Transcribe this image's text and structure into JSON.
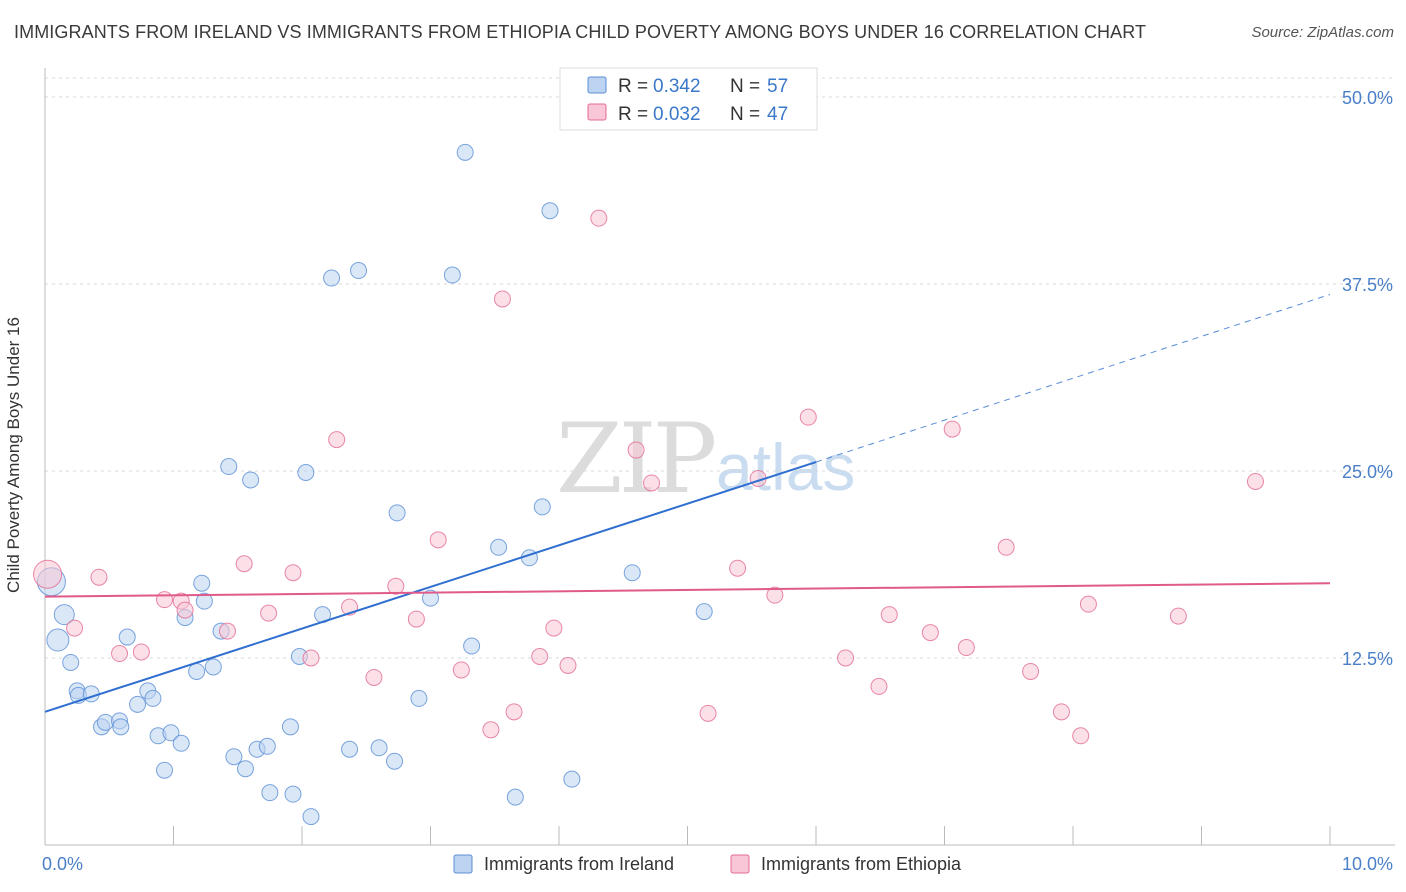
{
  "title": "IMMIGRANTS FROM IRELAND VS IMMIGRANTS FROM ETHIOPIA CHILD POVERTY AMONG BOYS UNDER 16 CORRELATION CHART",
  "source": "Source: ZipAtlas.com",
  "watermark": {
    "zip": "ZIP",
    "atlas": "atlas"
  },
  "colors": {
    "ireland": "#5a8fd6",
    "ireland_fill": "#bcd3f1",
    "ethiopia": "#e46a93",
    "ethiopia_fill": "#f8c6d6",
    "axis_text": "#4a7fc8"
  },
  "legend_top": [
    {
      "r_label": "R =",
      "r_value": "0.342",
      "n_label": "N =",
      "n_value": "57"
    },
    {
      "r_label": "R =",
      "r_value": "0.032",
      "n_label": "N =",
      "n_value": "47"
    }
  ],
  "chart_data": {
    "type": "scatter",
    "ylabel": "Child Poverty Among Boys Under 16",
    "xlim": [
      0,
      10
    ],
    "ylim": [
      0,
      50
    ],
    "x_tick_labels": [
      "0.0%",
      "10.0%"
    ],
    "y_tick_labels": [
      "12.5%",
      "25.0%",
      "37.5%",
      "50.0%"
    ],
    "y_ticks": [
      12.5,
      25.0,
      37.5,
      50.0
    ],
    "grid": true,
    "legend_position": "bottom-center",
    "series": [
      {
        "name": "Immigrants from Ireland",
        "trend": {
          "x": [
            0,
            6.0
          ],
          "y": [
            8.9,
            25.6
          ],
          "dashed_to": [
            10,
            36.8
          ]
        },
        "points": [
          [
            0.05,
            17.6,
            28
          ],
          [
            0.15,
            15.4,
            20
          ],
          [
            0.1,
            13.7,
            22
          ],
          [
            0.2,
            12.2,
            16
          ],
          [
            0.25,
            10.3,
            16
          ],
          [
            0.26,
            10.0,
            16
          ],
          [
            0.36,
            10.1,
            16
          ],
          [
            0.44,
            7.9,
            16
          ],
          [
            0.47,
            8.2,
            16
          ],
          [
            0.58,
            8.3,
            16
          ],
          [
            0.59,
            7.9,
            16
          ],
          [
            0.64,
            13.9,
            16
          ],
          [
            0.72,
            9.4,
            16
          ],
          [
            0.8,
            10.3,
            16
          ],
          [
            0.84,
            9.8,
            16
          ],
          [
            0.88,
            7.3,
            16
          ],
          [
            0.93,
            5.0,
            16
          ],
          [
            0.98,
            7.5,
            16
          ],
          [
            1.06,
            6.8,
            16
          ],
          [
            1.09,
            15.2,
            16
          ],
          [
            1.18,
            11.6,
            16
          ],
          [
            1.22,
            17.5,
            16
          ],
          [
            1.24,
            16.3,
            16
          ],
          [
            1.31,
            11.9,
            16
          ],
          [
            1.37,
            14.3,
            16
          ],
          [
            1.43,
            25.3,
            16
          ],
          [
            1.47,
            5.9,
            16
          ],
          [
            1.56,
            5.1,
            16
          ],
          [
            1.6,
            24.4,
            16
          ],
          [
            1.65,
            6.4,
            16
          ],
          [
            1.73,
            6.6,
            16
          ],
          [
            1.75,
            3.5,
            16
          ],
          [
            1.91,
            7.9,
            16
          ],
          [
            1.93,
            3.4,
            16
          ],
          [
            1.98,
            12.6,
            16
          ],
          [
            2.03,
            24.9,
            16
          ],
          [
            2.07,
            1.9,
            16
          ],
          [
            2.16,
            15.4,
            16
          ],
          [
            2.23,
            37.9,
            16
          ],
          [
            2.37,
            6.4,
            16
          ],
          [
            2.44,
            38.4,
            16
          ],
          [
            2.6,
            6.5,
            16
          ],
          [
            2.72,
            5.6,
            16
          ],
          [
            2.74,
            22.2,
            16
          ],
          [
            2.91,
            9.8,
            16
          ],
          [
            3.0,
            16.5,
            16
          ],
          [
            3.17,
            38.1,
            16
          ],
          [
            3.27,
            46.3,
            16
          ],
          [
            3.32,
            13.3,
            16
          ],
          [
            3.53,
            19.9,
            16
          ],
          [
            3.66,
            3.2,
            16
          ],
          [
            3.77,
            19.2,
            16
          ],
          [
            3.87,
            22.6,
            16
          ],
          [
            3.93,
            42.4,
            16
          ],
          [
            4.1,
            4.4,
            16
          ],
          [
            4.57,
            18.2,
            16
          ],
          [
            5.13,
            15.6,
            16
          ]
        ]
      },
      {
        "name": "Immigrants from Ethiopia",
        "trend": {
          "x": [
            0,
            10
          ],
          "y": [
            16.6,
            17.5
          ]
        },
        "points": [
          [
            0.02,
            18.1,
            28
          ],
          [
            0.23,
            14.5,
            16
          ],
          [
            0.42,
            17.9,
            16
          ],
          [
            0.58,
            12.8,
            16
          ],
          [
            0.75,
            12.9,
            16
          ],
          [
            0.93,
            16.4,
            16
          ],
          [
            1.06,
            16.3,
            16
          ],
          [
            1.09,
            15.7,
            16
          ],
          [
            1.42,
            14.3,
            16
          ],
          [
            1.55,
            18.8,
            16
          ],
          [
            1.74,
            15.5,
            16
          ],
          [
            1.93,
            18.2,
            16
          ],
          [
            2.07,
            12.5,
            16
          ],
          [
            2.27,
            27.1,
            16
          ],
          [
            2.37,
            15.9,
            16
          ],
          [
            2.56,
            11.2,
            16
          ],
          [
            2.73,
            17.3,
            16
          ],
          [
            2.89,
            15.1,
            16
          ],
          [
            3.06,
            20.4,
            16
          ],
          [
            3.24,
            11.7,
            16
          ],
          [
            3.47,
            7.7,
            16
          ],
          [
            3.56,
            36.5,
            16
          ],
          [
            3.65,
            8.9,
            16
          ],
          [
            3.85,
            12.6,
            16
          ],
          [
            3.96,
            14.5,
            16
          ],
          [
            4.07,
            12.0,
            16
          ],
          [
            4.31,
            41.9,
            16
          ],
          [
            4.6,
            26.4,
            16
          ],
          [
            4.72,
            24.2,
            16
          ],
          [
            5.16,
            8.8,
            16
          ],
          [
            5.39,
            18.5,
            16
          ],
          [
            5.55,
            24.5,
            16
          ],
          [
            5.68,
            16.7,
            16
          ],
          [
            5.94,
            28.6,
            16
          ],
          [
            6.23,
            12.5,
            16
          ],
          [
            6.49,
            10.6,
            16
          ],
          [
            6.57,
            15.4,
            16
          ],
          [
            6.89,
            14.2,
            16
          ],
          [
            7.06,
            27.8,
            16
          ],
          [
            7.17,
            13.2,
            16
          ],
          [
            7.48,
            19.9,
            16
          ],
          [
            7.67,
            11.6,
            16
          ],
          [
            7.91,
            8.9,
            16
          ],
          [
            8.06,
            7.3,
            16
          ],
          [
            8.12,
            16.1,
            16
          ],
          [
            8.82,
            15.3,
            16
          ],
          [
            9.42,
            24.3,
            16
          ]
        ]
      }
    ]
  }
}
